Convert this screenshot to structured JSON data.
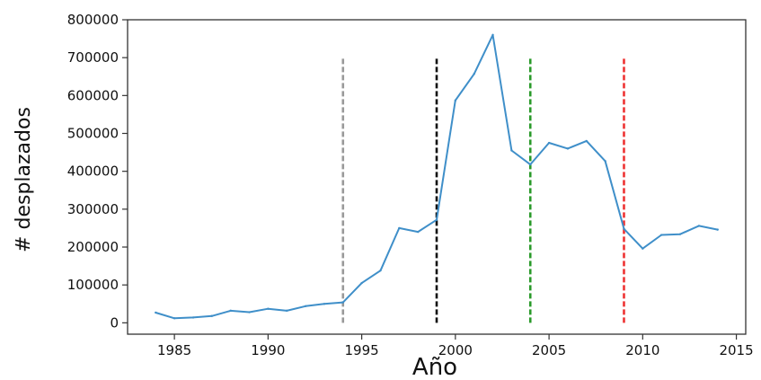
{
  "chart_data": {
    "type": "line",
    "xlabel": "Año",
    "ylabel": "# desplazados",
    "xlim": [
      1982.5,
      2015.5
    ],
    "ylim": [
      -30000,
      800000
    ],
    "xticks": [
      1985,
      1990,
      1995,
      2000,
      2005,
      2010,
      2015
    ],
    "yticks": [
      0,
      100000,
      200000,
      300000,
      400000,
      500000,
      600000,
      700000,
      800000
    ],
    "grid": false,
    "series": [
      {
        "color": "#3f8fc9",
        "x": [
          1984,
          1985,
          1986,
          1987,
          1988,
          1989,
          1990,
          1991,
          1992,
          1993,
          1994,
          1995,
          1996,
          1997,
          1998,
          1999,
          2000,
          2001,
          2002,
          2003,
          2004,
          2005,
          2006,
          2007,
          2008,
          2009,
          2010,
          2011,
          2012,
          2013,
          2014
        ],
        "values": [
          27000,
          12000,
          14000,
          18000,
          32000,
          28000,
          37000,
          32000,
          44000,
          50000,
          54000,
          105000,
          138000,
          250000,
          240000,
          272000,
          587000,
          657000,
          760000,
          455000,
          418000,
          475000,
          460000,
          480000,
          427000,
          248000,
          196000,
          232000,
          234000,
          256000,
          246000
        ]
      }
    ],
    "vlines": [
      {
        "x": 1994,
        "ymin": 0,
        "ymax": 700000,
        "color": "#999999"
      },
      {
        "x": 1999,
        "ymin": 0,
        "ymax": 700000,
        "color": "#111111"
      },
      {
        "x": 2004,
        "ymin": 0,
        "ymax": 700000,
        "color": "#2a9a2a"
      },
      {
        "x": 2009,
        "ymin": 0,
        "ymax": 700000,
        "color": "#ee3333"
      }
    ]
  }
}
